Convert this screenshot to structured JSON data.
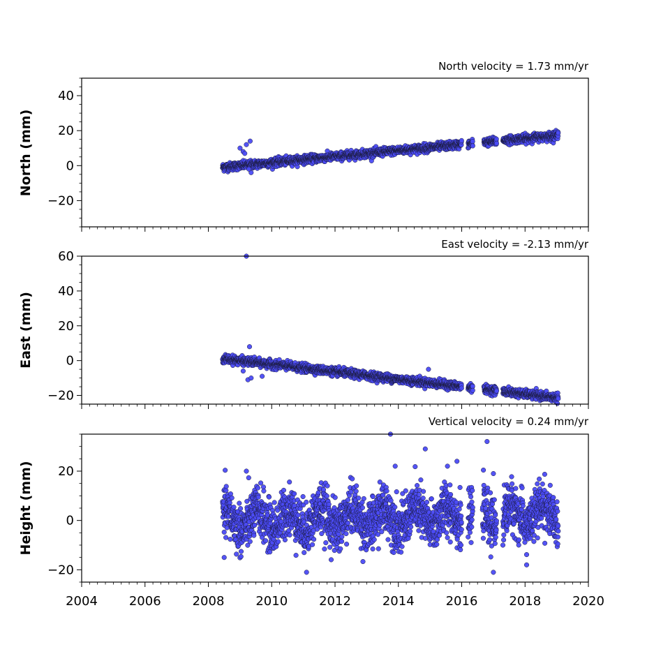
{
  "chart_data": [
    {
      "type": "scatter",
      "title": "North velocity = 1.73 mm/yr",
      "ylabel": "North (mm)",
      "xlim": [
        2004,
        2020
      ],
      "ylim": [
        -35,
        50
      ],
      "yticks": [
        -20,
        0,
        20,
        40
      ],
      "ytick_labels": [
        "−20",
        "0",
        "20",
        "40"
      ],
      "velocity": 1.73,
      "start": 2008.45,
      "end": 2019.05,
      "noise": 1.1,
      "gaps": [
        [
          2016.0,
          2016.2
        ],
        [
          2016.35,
          2016.7
        ],
        [
          2017.1,
          2017.3
        ]
      ],
      "outliers": [
        [
          2009.0,
          10
        ],
        [
          2009.2,
          12
        ],
        [
          2009.32,
          14
        ],
        [
          2009.1,
          8
        ],
        [
          2009.35,
          -4
        ],
        [
          2009.28,
          -2
        ],
        [
          2009.15,
          7
        ]
      ]
    },
    {
      "type": "scatter",
      "title": "East velocity = -2.13 mm/yr",
      "ylabel": "East (mm)",
      "xlim": [
        2004,
        2020
      ],
      "ylim": [
        -25,
        60
      ],
      "yticks": [
        -20,
        0,
        20,
        40,
        60
      ],
      "ytick_labels": [
        "−20",
        "0",
        "20",
        "40",
        "60"
      ],
      "velocity": -2.13,
      "start": 2008.45,
      "end": 2019.05,
      "noise": 1.1,
      "gaps": [
        [
          2016.0,
          2016.2
        ],
        [
          2016.35,
          2016.7
        ],
        [
          2017.1,
          2017.3
        ]
      ],
      "outliers": [
        [
          2009.2,
          60
        ],
        [
          2009.3,
          8
        ],
        [
          2009.25,
          -11
        ],
        [
          2009.35,
          -10
        ],
        [
          2009.7,
          -9
        ],
        [
          2009.1,
          -6
        ],
        [
          2014.95,
          -5
        ]
      ]
    },
    {
      "type": "scatter",
      "title": "Vertical velocity = 0.24 mm/yr",
      "ylabel": "Height (mm)",
      "xlim": [
        2004,
        2020
      ],
      "ylim": [
        -25,
        35
      ],
      "yticks": [
        -20,
        0,
        20
      ],
      "ytick_labels": [
        "−20",
        "0",
        "20"
      ],
      "velocity": 0.24,
      "start": 2008.45,
      "end": 2019.05,
      "noise": 5.0,
      "gaps": [
        [
          2016.0,
          2016.2
        ],
        [
          2016.35,
          2016.65
        ],
        [
          2017.1,
          2017.3
        ]
      ],
      "outliers": [
        [
          2013.75,
          35
        ],
        [
          2016.8,
          32
        ],
        [
          2014.85,
          29
        ],
        [
          2015.85,
          24
        ],
        [
          2013.9,
          22
        ],
        [
          2015.55,
          22
        ],
        [
          2009.2,
          20
        ],
        [
          2017.0,
          19
        ],
        [
          2011.1,
          -21
        ],
        [
          2017.0,
          -21
        ],
        [
          2018.05,
          -18
        ],
        [
          2008.5,
          -15
        ],
        [
          2017.3,
          -10
        ]
      ]
    }
  ],
  "xaxis": {
    "ticks": [
      2004,
      2006,
      2008,
      2010,
      2012,
      2014,
      2016,
      2018,
      2020
    ],
    "tick_labels": [
      "2004",
      "2006",
      "2008",
      "2010",
      "2012",
      "2014",
      "2016",
      "2018",
      "2020"
    ]
  },
  "colors": {
    "marker_fill": "#4b4bf5",
    "marker_edge": "#1a1a3a"
  }
}
